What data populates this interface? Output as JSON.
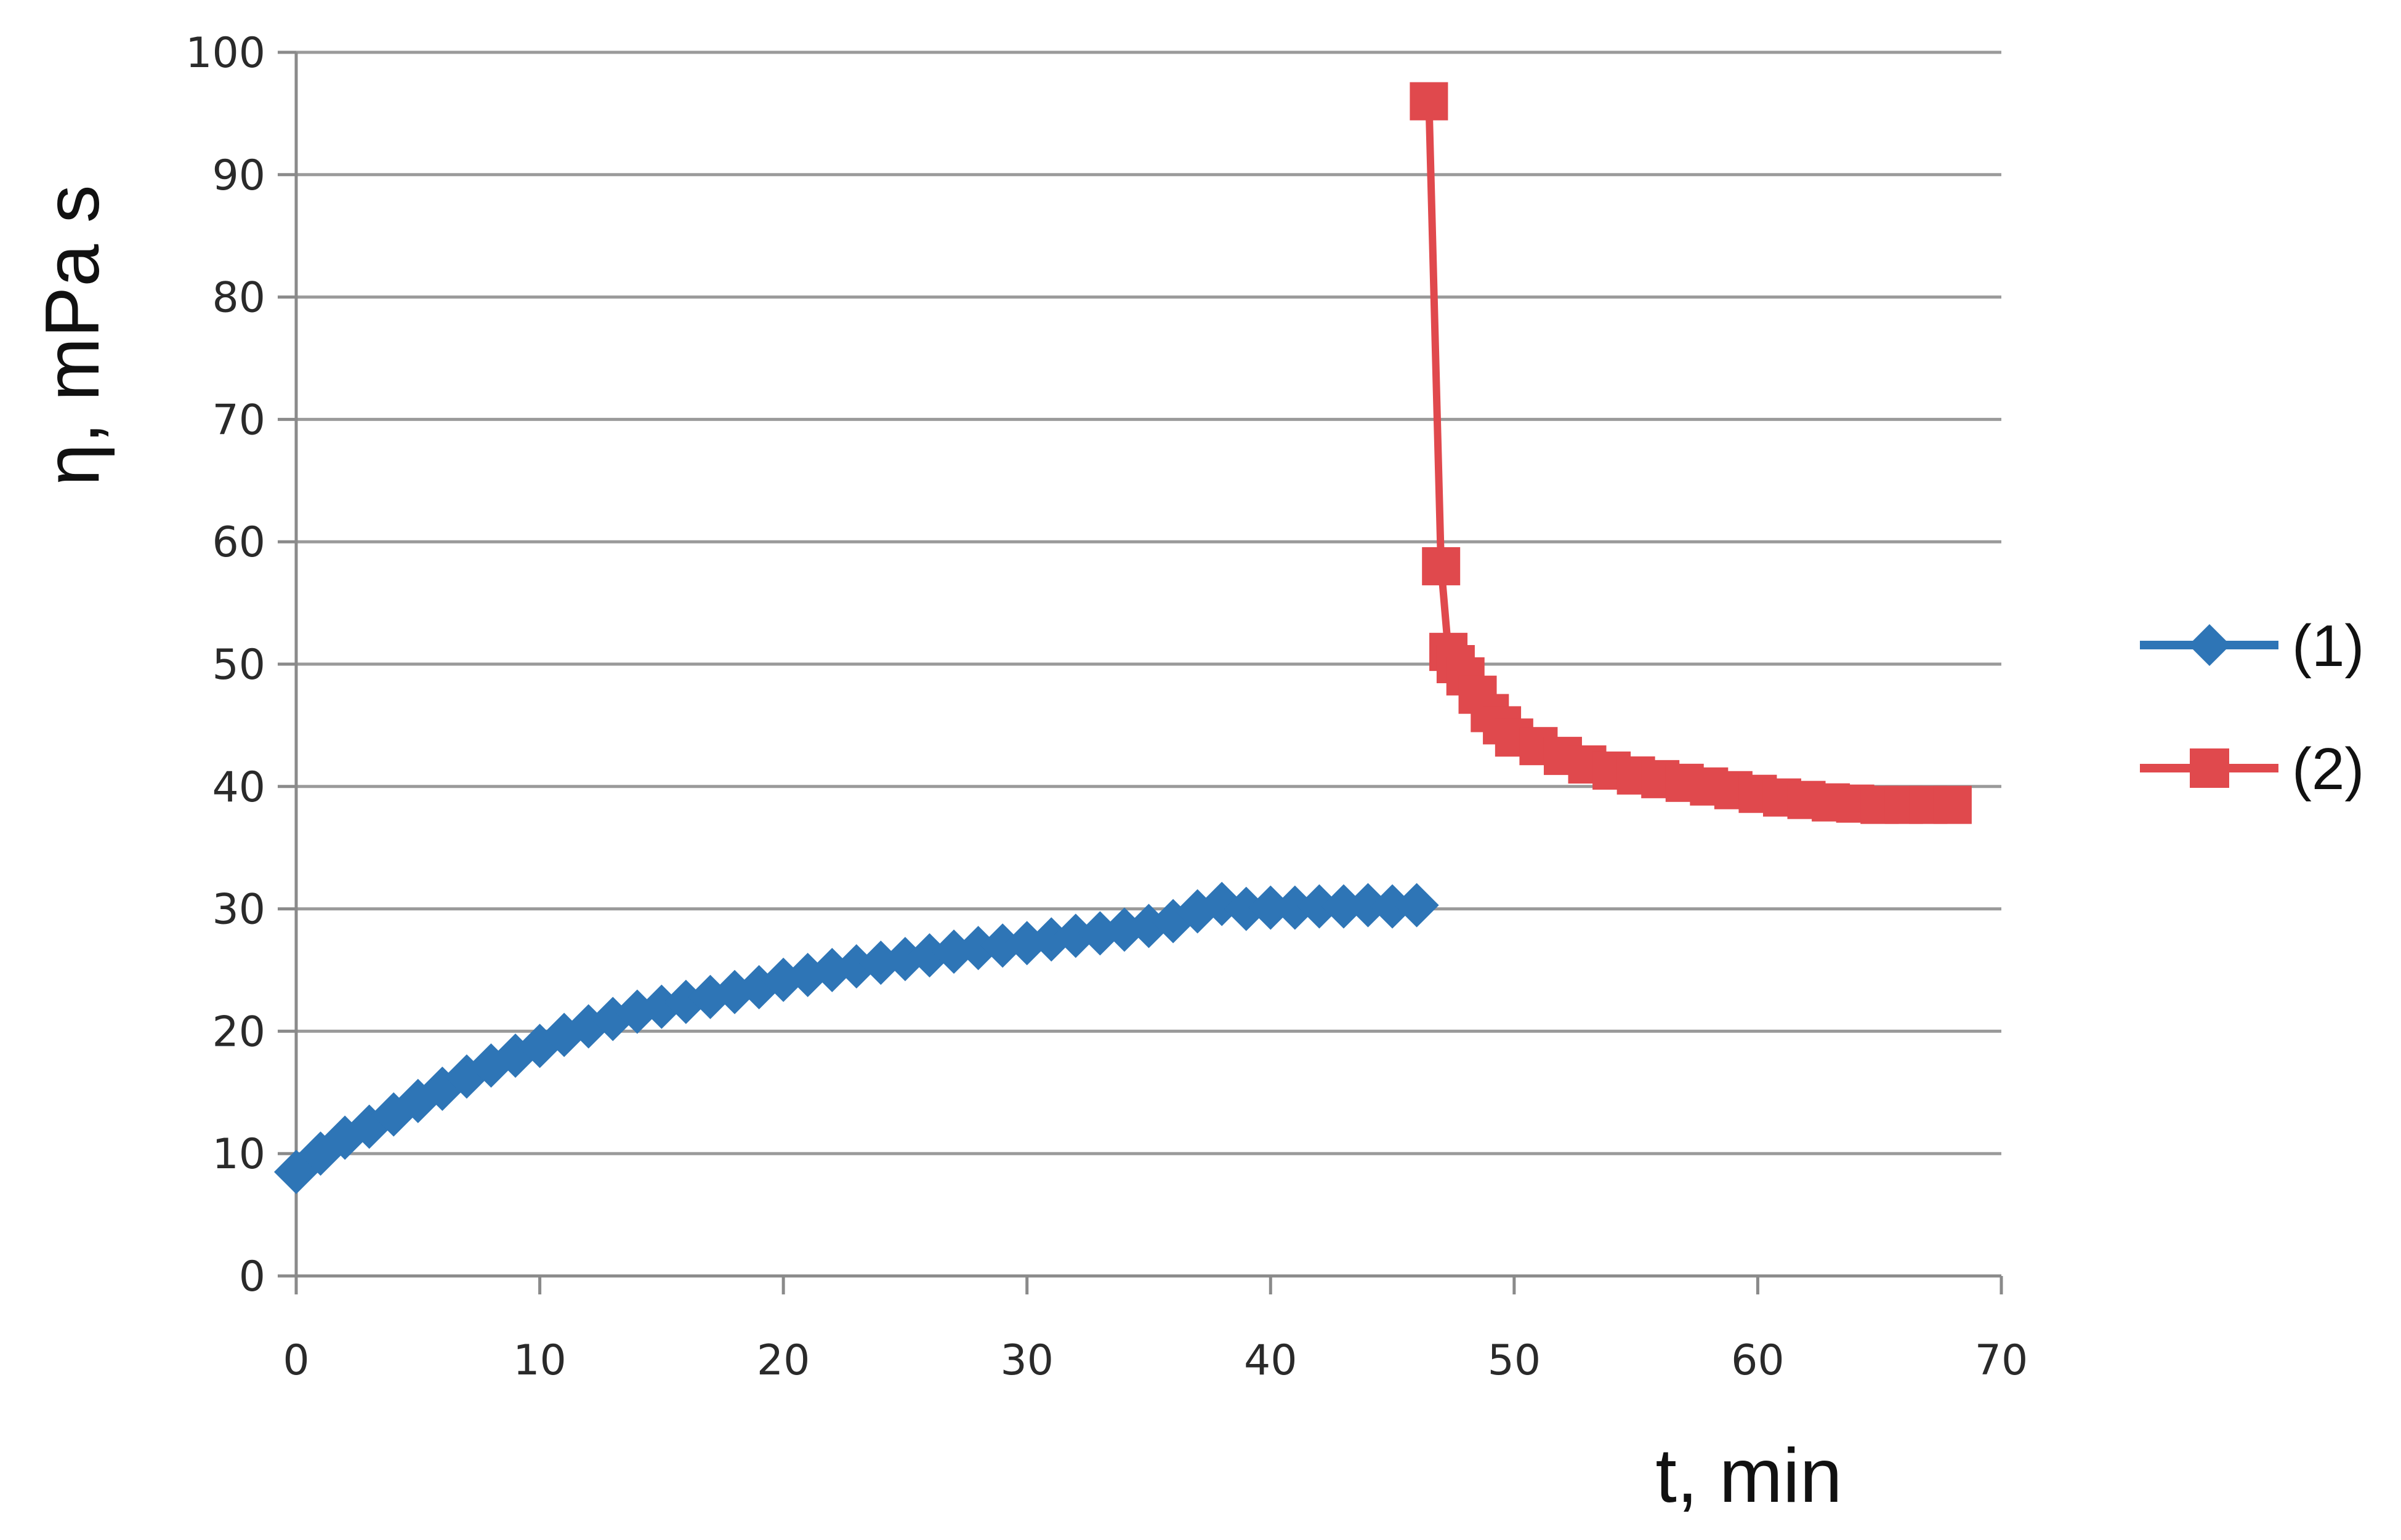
{
  "chart_data": {
    "type": "line",
    "xlabel": "t, min",
    "ylabel": "η, mPa s",
    "xlim": [
      0,
      70
    ],
    "ylim": [
      0,
      100
    ],
    "xticks": [
      "0",
      "10",
      "20",
      "30",
      "40",
      "50",
      "60",
      "70"
    ],
    "yticks": [
      "0",
      "10",
      "20",
      "30",
      "40",
      "50",
      "60",
      "70",
      "80",
      "90",
      "100"
    ],
    "grid": "horizontal",
    "legend_position": "right",
    "series": [
      {
        "name": "(1)",
        "color": "#2e75b6",
        "marker": "diamond",
        "x": [
          0,
          1,
          2,
          3,
          4,
          5,
          6,
          7,
          8,
          9,
          10,
          11,
          12,
          13,
          14,
          15,
          16,
          17,
          18,
          19,
          20,
          21,
          22,
          23,
          24,
          25,
          26,
          27,
          28,
          29,
          30,
          31,
          32,
          33,
          34,
          35,
          36,
          37,
          38,
          39,
          40,
          41,
          42,
          43,
          44,
          45,
          46
        ],
        "y": [
          8.5,
          10,
          11.3,
          12.2,
          13.2,
          14.3,
          15.3,
          16.3,
          17.2,
          18,
          18.8,
          19.7,
          20.4,
          21,
          21.6,
          22,
          22.4,
          22.8,
          23.2,
          23.6,
          24.2,
          24.6,
          25,
          25.3,
          25.6,
          25.9,
          26.2,
          26.5,
          26.8,
          27,
          27.2,
          27.5,
          27.8,
          28,
          28.3,
          28.6,
          29,
          29.8,
          30.4,
          30,
          30.1,
          30.1,
          30.2,
          30.2,
          30.3,
          30.2,
          30.3
        ]
      },
      {
        "name": "(2)",
        "color": "#e0494d",
        "marker": "square",
        "x": [
          46.5,
          47,
          47.3,
          47.6,
          48,
          48.5,
          49,
          49.5,
          50,
          51,
          52,
          53,
          54,
          55,
          56,
          57,
          58,
          59,
          60,
          61,
          62,
          63,
          64,
          65,
          66,
          67,
          68
        ],
        "y": [
          96,
          58,
          51,
          50,
          49,
          47.5,
          46,
          45,
          44,
          43.3,
          42.5,
          41.8,
          41.3,
          40.9,
          40.6,
          40.3,
          40,
          39.7,
          39.4,
          39.1,
          38.9,
          38.7,
          38.6,
          38.5,
          38.5,
          38.5,
          38.5
        ]
      }
    ]
  }
}
